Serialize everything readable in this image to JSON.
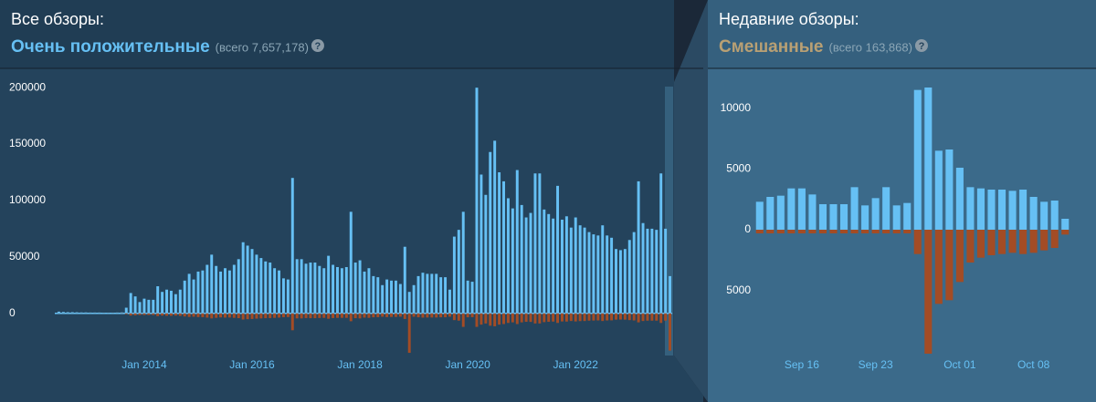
{
  "chart_data": [
    {
      "type": "bar",
      "title": "Все обзоры:",
      "subtitle": "Очень положительные",
      "subtitle_color": "#66c0f4",
      "note": "(всего 7,657,178)",
      "help": "?",
      "x": [
        "2012-06",
        "2012-07",
        "2012-08",
        "2012-09",
        "2012-10",
        "2012-11",
        "2012-12",
        "2013-01",
        "2013-02",
        "2013-03",
        "2013-04",
        "2013-05",
        "2013-06",
        "2013-07",
        "2013-08",
        "2013-09",
        "2013-10",
        "2013-11",
        "2013-12",
        "2014-01",
        "2014-02",
        "2014-03",
        "2014-04",
        "2014-05",
        "2014-06",
        "2014-07",
        "2014-08",
        "2014-09",
        "2014-10",
        "2014-11",
        "2014-12",
        "2015-01",
        "2015-02",
        "2015-03",
        "2015-04",
        "2015-05",
        "2015-06",
        "2015-07",
        "2015-08",
        "2015-09",
        "2015-10",
        "2015-11",
        "2015-12",
        "2016-01",
        "2016-02",
        "2016-03",
        "2016-04",
        "2016-05",
        "2016-06",
        "2016-07",
        "2016-08",
        "2016-09",
        "2016-10",
        "2016-11",
        "2016-12",
        "2017-01",
        "2017-02",
        "2017-03",
        "2017-04",
        "2017-05",
        "2017-06",
        "2017-07",
        "2017-08",
        "2017-09",
        "2017-10",
        "2017-11",
        "2017-12",
        "2018-01",
        "2018-02",
        "2018-03",
        "2018-04",
        "2018-05",
        "2018-06",
        "2018-07",
        "2018-08",
        "2018-09",
        "2018-10",
        "2018-11",
        "2018-12",
        "2019-01",
        "2019-02",
        "2019-03",
        "2019-04",
        "2019-05",
        "2019-06",
        "2019-07",
        "2019-08",
        "2019-09",
        "2019-10",
        "2019-11",
        "2019-12",
        "2020-01",
        "2020-02",
        "2020-03",
        "2020-04",
        "2020-05",
        "2020-06",
        "2020-07",
        "2020-08",
        "2020-09",
        "2020-10",
        "2020-11",
        "2020-12",
        "2021-01",
        "2021-02",
        "2021-03",
        "2021-04",
        "2021-05",
        "2021-06",
        "2021-07",
        "2021-08",
        "2021-09",
        "2021-10",
        "2021-11",
        "2021-12",
        "2022-01",
        "2022-02",
        "2022-03",
        "2022-04",
        "2022-05",
        "2022-06",
        "2022-07",
        "2022-08",
        "2022-09",
        "2022-10",
        "2022-11",
        "2022-12",
        "2023-01",
        "2023-02",
        "2023-03",
        "2023-04",
        "2023-05",
        "2023-06",
        "2023-07",
        "2023-08",
        "2023-09",
        "2023-10"
      ],
      "series": [
        {
          "color": "#66c0f4",
          "values": [
            1500,
            1200,
            1000,
            1000,
            900,
            800,
            800,
            700,
            700,
            700,
            600,
            600,
            600,
            700,
            800,
            5000,
            18000,
            15000,
            10000,
            13000,
            12000,
            12000,
            24000,
            19000,
            21000,
            20000,
            17000,
            21000,
            29000,
            35000,
            30000,
            37000,
            38000,
            43000,
            52000,
            42000,
            37000,
            40000,
            38000,
            43000,
            48000,
            63000,
            60000,
            57000,
            52000,
            49000,
            46000,
            45000,
            40000,
            38000,
            31000,
            30000,
            120000,
            48000,
            48000,
            44000,
            45000,
            45000,
            42000,
            40000,
            51000,
            43000,
            41000,
            40000,
            41000,
            90000,
            45000,
            47000,
            37000,
            40000,
            33000,
            32000,
            25000,
            30000,
            29000,
            29000,
            26000,
            59000,
            19000,
            25000,
            33000,
            36000,
            35000,
            35000,
            35000,
            32000,
            32000,
            21000,
            68000,
            74000,
            90000,
            29000,
            28000,
            200000,
            123000,
            105000,
            143000,
            153000,
            125000,
            117000,
            102000,
            93000,
            127000,
            96000,
            85000,
            89000,
            124000,
            124000,
            92000,
            88000,
            84000,
            113000,
            83000,
            86000,
            76000,
            85000,
            78000,
            76000,
            72000,
            70000,
            69000,
            78000,
            69000,
            67000,
            57000,
            56000,
            57000,
            65000,
            72000,
            117000,
            80000,
            75000,
            75000,
            74000,
            124000,
            75000,
            33000
          ]
        },
        {
          "color": "#a34c25",
          "values": [
            -100,
            -100,
            -100,
            -100,
            -100,
            -100,
            -100,
            -100,
            -100,
            -100,
            -100,
            -100,
            -100,
            -100,
            -200,
            -800,
            -2000,
            -1800,
            -1500,
            -1500,
            -1500,
            -1500,
            -2500,
            -2000,
            -2200,
            -2200,
            -2000,
            -2300,
            -2800,
            -3200,
            -3000,
            -3300,
            -3400,
            -3800,
            -4500,
            -4000,
            -3600,
            -3800,
            -3700,
            -4000,
            -4300,
            -5500,
            -5200,
            -5000,
            -4700,
            -4500,
            -4300,
            -4200,
            -4000,
            -3800,
            -3400,
            -3300,
            -15000,
            -4500,
            -4500,
            -4200,
            -4300,
            -4300,
            -4100,
            -4000,
            -4800,
            -4200,
            -4000,
            -4000,
            -4000,
            -7000,
            -4300,
            -4500,
            -3800,
            -4000,
            -3500,
            -3400,
            -3000,
            -3300,
            -3200,
            -3200,
            -3000,
            -5000,
            -35000,
            -3000,
            -3500,
            -3800,
            -3700,
            -3700,
            -3700,
            -3500,
            -3500,
            -3000,
            -6000,
            -6500,
            -12000,
            -3500,
            -3400,
            -12000,
            -10000,
            -9000,
            -11000,
            -11500,
            -10000,
            -9500,
            -8500,
            -8000,
            -9500,
            -8000,
            -7500,
            -7600,
            -9000,
            -9000,
            -7800,
            -7500,
            -7300,
            -8500,
            -7200,
            -7300,
            -6800,
            -7200,
            -6900,
            -6800,
            -6500,
            -6400,
            -6300,
            -6800,
            -6300,
            -6200,
            -5600,
            -5500,
            -5600,
            -6000,
            -6300,
            -8000,
            -6800,
            -6500,
            -6500,
            -6500,
            -8500,
            -6500,
            -33000
          ]
        }
      ],
      "ylim": [
        -39000,
        205000
      ],
      "yticks": [
        0,
        50000,
        100000,
        150000,
        200000
      ],
      "xticks": [
        {
          "value": "2014-01",
          "label": "Jan 2014"
        },
        {
          "value": "2016-01",
          "label": "Jan 2016"
        },
        {
          "value": "2018-01",
          "label": "Jan 2018"
        },
        {
          "value": "2020-01",
          "label": "Jan 2020"
        },
        {
          "value": "2022-01",
          "label": "Jan 2022"
        }
      ],
      "baseline": true
    },
    {
      "type": "bar",
      "title": "Недавние обзоры:",
      "subtitle": "Смешанные",
      "subtitle_color": "#b9a074",
      "note": "(всего 163,868)",
      "help": "?",
      "x": [
        "Sep 12",
        "Sep 13",
        "Sep 14",
        "Sep 15",
        "Sep 16",
        "Sep 17",
        "Sep 18",
        "Sep 19",
        "Sep 20",
        "Sep 21",
        "Sep 22",
        "Sep 23",
        "Sep 24",
        "Sep 25",
        "Sep 26",
        "Sep 27",
        "Sep 28",
        "Sep 29",
        "Sep 30",
        "Oct 01",
        "Oct 02",
        "Oct 03",
        "Oct 04",
        "Oct 05",
        "Oct 06",
        "Oct 07",
        "Oct 08",
        "Oct 09",
        "Oct 10",
        "Oct 11"
      ],
      "series": [
        {
          "color": "#66c0f4",
          "values": [
            2300,
            2700,
            2800,
            3400,
            3400,
            2900,
            2100,
            2100,
            2100,
            3500,
            2000,
            2600,
            3500,
            2000,
            2200,
            11500,
            11700,
            6500,
            6600,
            5100,
            3500,
            3400,
            3300,
            3300,
            3200,
            3300,
            2700,
            2300,
            2400,
            900
          ]
        },
        {
          "color": "#a34c25",
          "values": [
            -300,
            -300,
            -300,
            -300,
            -300,
            -300,
            -300,
            -300,
            -300,
            -300,
            -300,
            -300,
            -300,
            -300,
            -300,
            -2000,
            -10200,
            -6100,
            -5800,
            -4300,
            -2700,
            -2300,
            -2100,
            -2000,
            -1900,
            -2000,
            -1900,
            -1700,
            -1500,
            -400
          ]
        }
      ],
      "ylim": [
        -10500,
        12000
      ],
      "yticks": [
        {
          "value": -5000,
          "label": "5000"
        },
        0,
        5000,
        10000
      ],
      "xticks": [
        "Sep 16",
        "Sep 23",
        "Oct 01",
        "Oct 08"
      ],
      "baseline": false
    }
  ]
}
